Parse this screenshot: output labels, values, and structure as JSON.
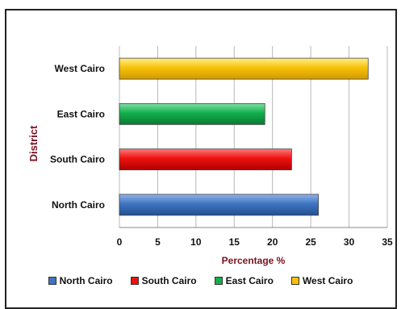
{
  "chart_data": {
    "type": "bar",
    "orientation": "horizontal",
    "categories": [
      "North Cairo",
      "South Cairo",
      "East Cairo",
      "West Cairo"
    ],
    "values": [
      26,
      22.5,
      19,
      32.5
    ],
    "colors": [
      "#3f74c2",
      "#ee1111",
      "#12b04c",
      "#f7c20a"
    ],
    "xlabel": "Percentage %",
    "ylabel": "District",
    "xlim": [
      0,
      35
    ],
    "xticks": [
      "0",
      "5",
      "10",
      "15",
      "20",
      "25",
      "30",
      "35"
    ],
    "grid": true,
    "legend": {
      "placement": "bottom",
      "entries": [
        "North Cairo",
        "South Cairo",
        "East Cairo",
        "West Cairo"
      ]
    }
  }
}
